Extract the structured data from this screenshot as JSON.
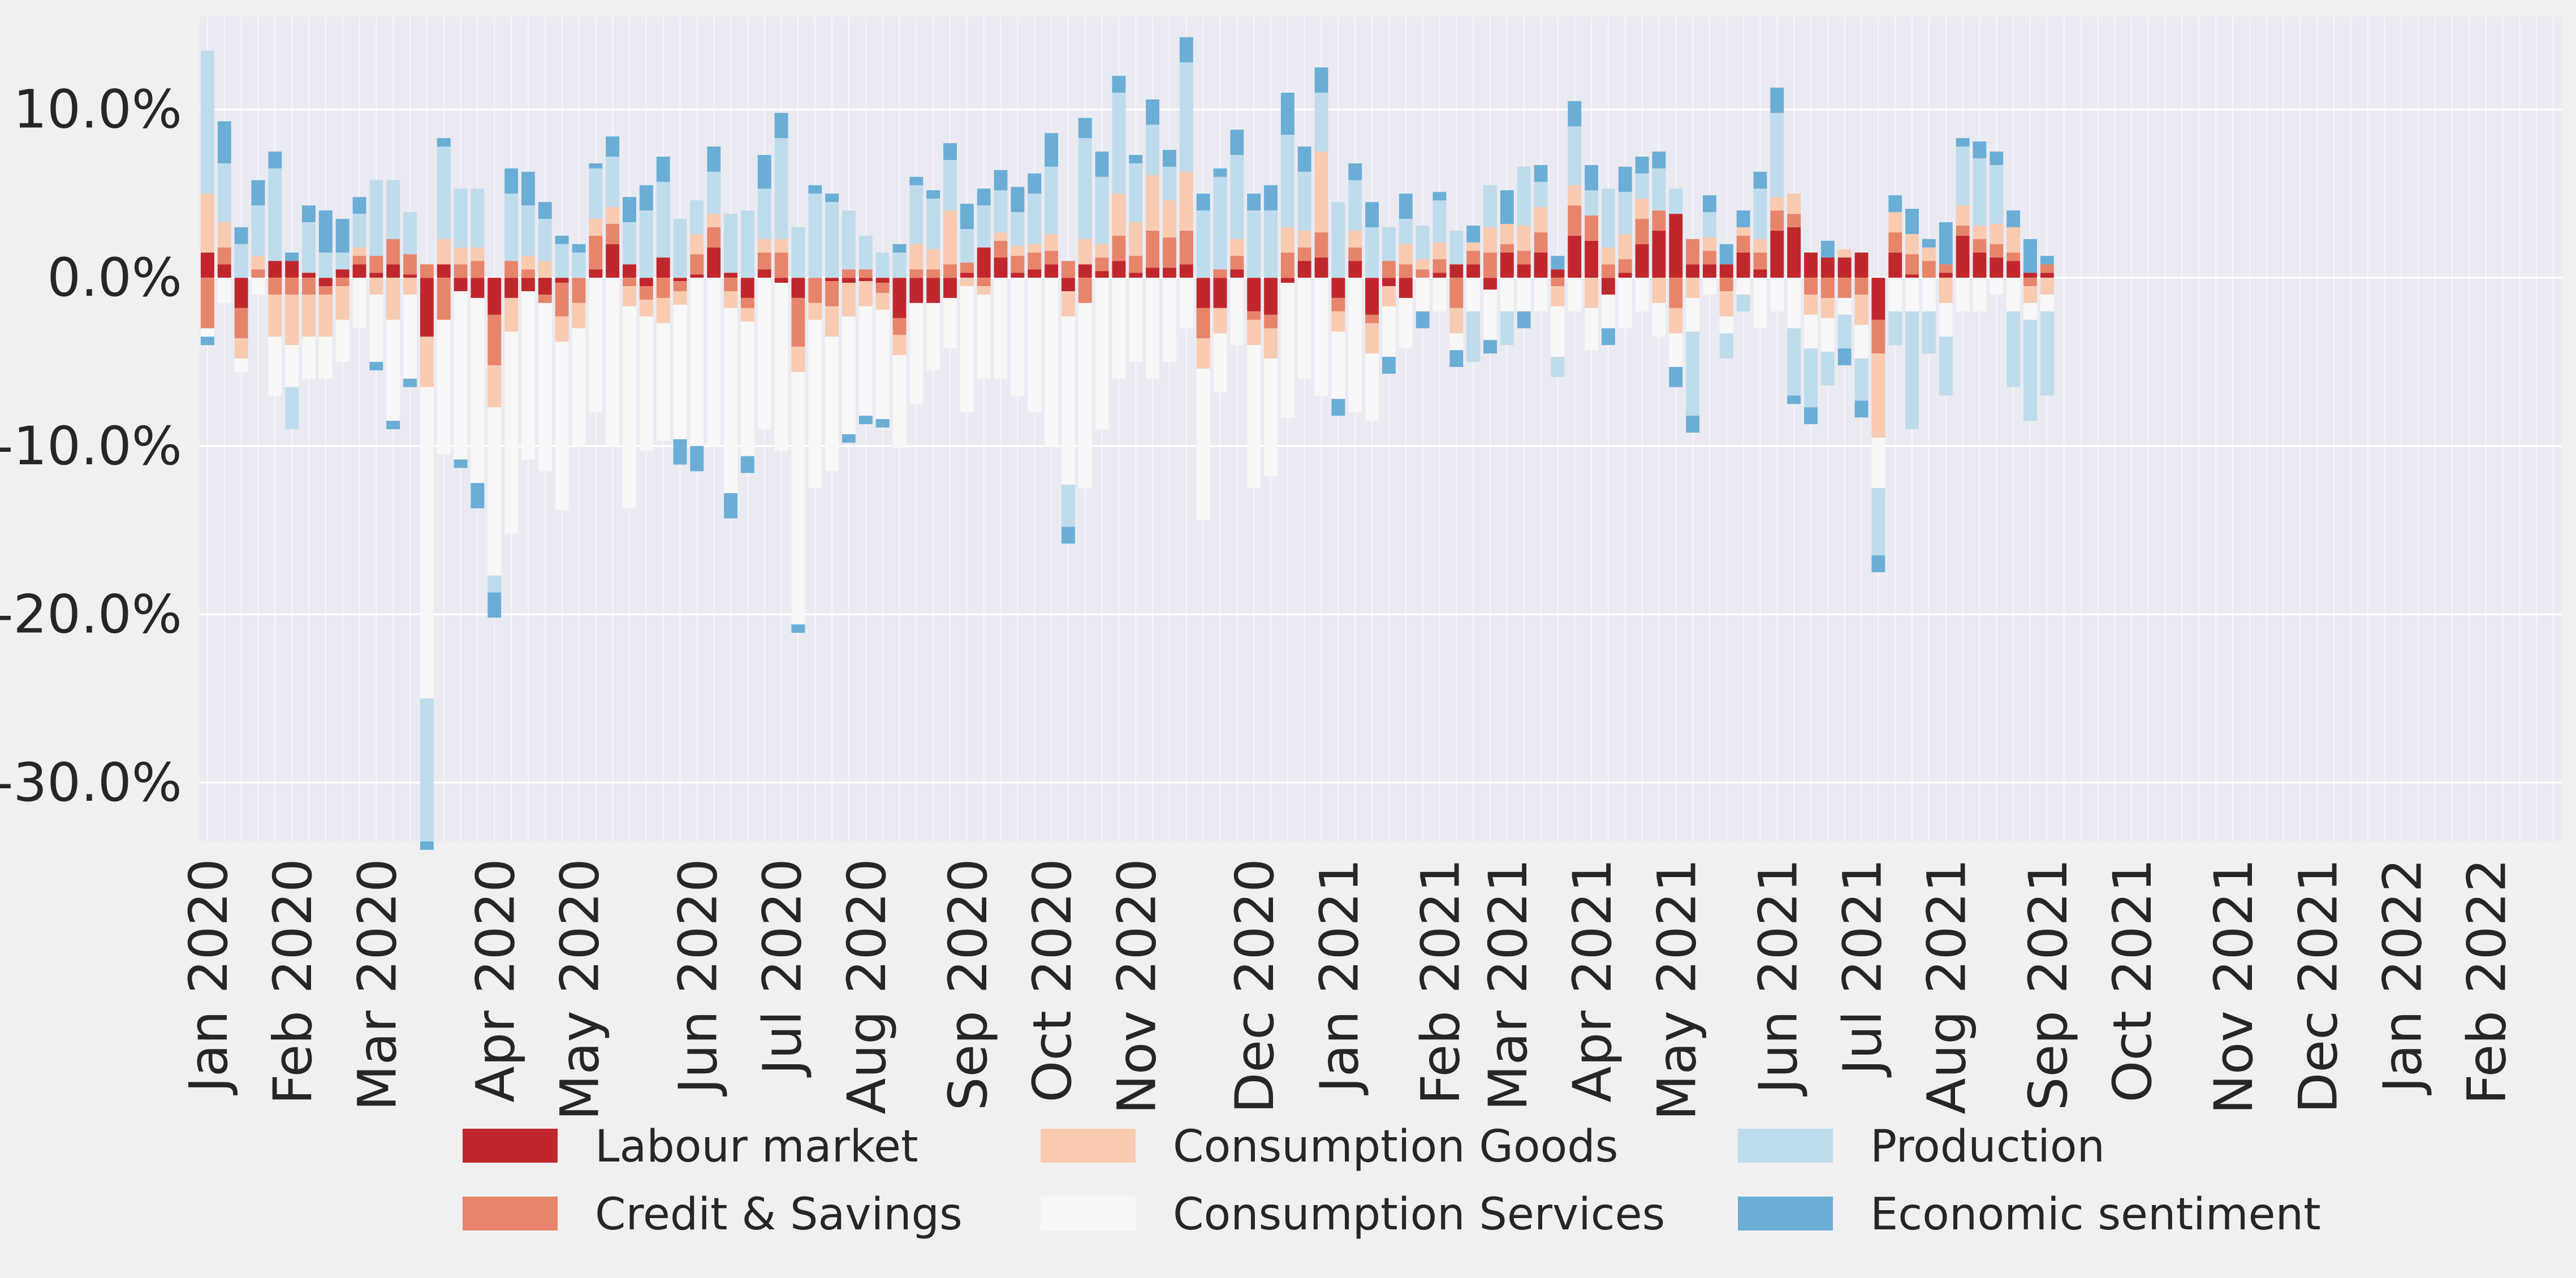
{
  "chart_data": {
    "type": "bar",
    "stacked": true,
    "title": "",
    "xlabel": "",
    "ylabel": "",
    "ylim": [
      -33.5,
      15.5
    ],
    "y_ticks": [
      10,
      0,
      -10,
      -20,
      -30
    ],
    "y_tick_labels": [
      "10.0%",
      "0.0%",
      "-10.0%",
      "-20.0%",
      "-30.0%"
    ],
    "x_ticks": [
      {
        "label": "Jan 2020",
        "index": 0
      },
      {
        "label": "Feb 2020",
        "index": 5
      },
      {
        "label": "Mar 2020",
        "index": 10
      },
      {
        "label": "Apr 2020",
        "index": 17
      },
      {
        "label": "May 2020",
        "index": 22
      },
      {
        "label": "Jun 2020",
        "index": 29
      },
      {
        "label": "Jul 2020",
        "index": 34
      },
      {
        "label": "Aug 2020",
        "index": 39
      },
      {
        "label": "Sep 2020",
        "index": 45
      },
      {
        "label": "Oct 2020",
        "index": 50
      },
      {
        "label": "Nov 2020",
        "index": 55
      },
      {
        "label": "Dec 2020",
        "index": 62
      },
      {
        "label": "Jan 2021",
        "index": 67
      },
      {
        "label": "Feb 2021",
        "index": 73
      },
      {
        "label": "Mar 2021",
        "index": 77
      },
      {
        "label": "Apr 2021",
        "index": 82
      },
      {
        "label": "May 2021",
        "index": 87
      },
      {
        "label": "Jun 2021",
        "index": 93
      },
      {
        "label": "Jul 2021",
        "index": 98
      },
      {
        "label": "Aug 2021",
        "index": 103
      },
      {
        "label": "Sep 2021",
        "index": 109
      },
      {
        "label": "Oct 2021",
        "index": 114
      },
      {
        "label": "Nov 2021",
        "index": 120
      },
      {
        "label": "Dec 2021",
        "index": 125
      },
      {
        "label": "Jan 2022",
        "index": 130
      },
      {
        "label": "Feb 2022",
        "index": 135
      }
    ],
    "n_periods": 140,
    "grid": true,
    "legend_position": "bottom-center",
    "series": [
      {
        "name": "Labour market",
        "color": "#c0272d",
        "values": [
          1.5,
          0.8,
          -1.8,
          0,
          1,
          1,
          0.3,
          -0.5,
          0.5,
          0.8,
          0.3,
          0.8,
          0.2,
          -3.5,
          0.8,
          -0.8,
          -1.2,
          -2.2,
          -1.2,
          -0.8,
          -1,
          -0.3,
          0,
          0.5,
          2,
          0.8,
          -0.5,
          1.2,
          -0.2,
          0.2,
          1.8,
          0.3,
          -1.2,
          0.5,
          -0.3,
          -1.2,
          0,
          -0.2,
          -0.3,
          -0.2,
          -0.3,
          -2.4,
          -1.5,
          -1.5,
          -1.2,
          0.3,
          1.8,
          1.2,
          0.3,
          0.5,
          0.8,
          -0.8,
          0.8,
          0.4,
          1,
          0.3,
          0.6,
          0.6,
          0.8,
          -1.8,
          -1.8,
          0.5,
          -2,
          -2.2,
          -0.3,
          1,
          1.2,
          -1.2,
          1,
          -2.2,
          -0.5,
          -1.2,
          0,
          0.3,
          0.8,
          0.8,
          -0.7,
          1.5,
          0.8,
          1.5,
          0.5,
          2.5,
          2.2,
          -1,
          0.3,
          2,
          2.8,
          3.8,
          0.8,
          0.8,
          0.8,
          1.5,
          0.5,
          2.8,
          3,
          1.5,
          1.2,
          1.2,
          1.5,
          -2.5,
          1.5,
          0.2,
          0,
          0.3,
          2.5,
          1.5,
          1.2,
          1,
          0.3,
          0.3
        ]
      },
      {
        "name": "Credit & Savings",
        "color": "#e7856b",
        "values": [
          -3,
          1,
          -1.8,
          0.5,
          -1,
          -1,
          -1,
          -0.5,
          -0.5,
          0.5,
          1,
          1.5,
          1.2,
          0.8,
          -2.5,
          0.8,
          1,
          -3,
          1,
          0.5,
          -0.5,
          -2,
          -1.5,
          2,
          1.2,
          -0.5,
          -0.8,
          -1.2,
          -0.6,
          1.2,
          1.2,
          -0.8,
          -0.6,
          1,
          1.5,
          -2.9,
          -1.5,
          -1.5,
          0.5,
          0.5,
          -0.6,
          -1,
          0.5,
          0.5,
          0.8,
          0.6,
          -0.5,
          1,
          1,
          1,
          0.8,
          1,
          -1.5,
          0.8,
          1.5,
          1,
          2.2,
          1.8,
          2,
          -1.8,
          0.5,
          0.8,
          -0.5,
          -0.8,
          1.5,
          0.8,
          1.5,
          -0.8,
          0.8,
          -0.5,
          1,
          0.8,
          0.5,
          0.8,
          -1.8,
          0.8,
          1.5,
          0.5,
          0.8,
          1.2,
          -0.5,
          1.8,
          1.5,
          0.8,
          0.8,
          1.5,
          1.2,
          -1.8,
          1.5,
          0.8,
          -0.8,
          1,
          1,
          1.2,
          0.8,
          -1,
          -1.2,
          -1.2,
          -1,
          -2,
          1.2,
          1.2,
          1,
          0.5,
          0.6,
          0.8,
          0.8,
          0.5,
          -0.5,
          0.5
        ]
      },
      {
        "name": "Consumption Goods",
        "color": "#f9cbb1",
        "values": [
          3.5,
          1.5,
          -1.2,
          0.8,
          -2.5,
          -3,
          -2.5,
          -2.5,
          -2,
          0.5,
          -1,
          -2.5,
          -1,
          -3,
          1.5,
          1,
          0.8,
          -2.5,
          -2,
          0.8,
          1,
          -1.5,
          -1.5,
          1,
          1,
          -1.2,
          -1,
          -1.5,
          -0.8,
          1.2,
          0.8,
          -1,
          -0.8,
          0.8,
          0.8,
          -1.5,
          -1,
          -1.8,
          -2,
          -1.5,
          -1,
          -1.2,
          1.5,
          1.2,
          3.2,
          -0.5,
          -0.5,
          0.5,
          0.6,
          0.5,
          1,
          -1.5,
          1.5,
          0.8,
          2.5,
          2,
          3.3,
          2.2,
          3.5,
          -1.8,
          -1.5,
          1,
          -1.5,
          -1.8,
          1.5,
          1,
          4.8,
          -1.2,
          1,
          -1.8,
          -1.2,
          1.2,
          0.6,
          1,
          -1.5,
          0.5,
          1.5,
          1.2,
          1.5,
          1.5,
          -1.2,
          1.2,
          -1.8,
          1,
          1.5,
          1.2,
          -1.5,
          -1.5,
          -1.2,
          0.8,
          -1.5,
          0.5,
          0.8,
          0.8,
          1.2,
          -1.2,
          -1.2,
          0.5,
          -1.8,
          -5,
          1.2,
          1.2,
          0.8,
          -1.5,
          1.2,
          0.8,
          1.2,
          1.5,
          -1,
          -1
        ]
      },
      {
        "name": "Consumption Services",
        "color": "#f7f7f7",
        "values": [
          -0.5,
          -1.5,
          -0.8,
          -1,
          -3.5,
          -2.5,
          -2.5,
          -2.5,
          -2.5,
          -3,
          -4,
          -6,
          -5,
          -18.5,
          -8,
          -10,
          -11,
          -10,
          -12,
          -10,
          -10,
          -10,
          -7,
          -8,
          -10,
          -12,
          -8,
          -7,
          -8,
          -10,
          -10,
          -11,
          -8,
          -9,
          -10,
          -15,
          -10,
          -8,
          -7,
          -6.5,
          -6.5,
          -5.5,
          -6,
          -4,
          -3,
          -7.5,
          -5,
          -6,
          -7,
          -8,
          -10,
          -10,
          -11,
          -9,
          -6,
          -5,
          -6,
          -5,
          -3,
          -9,
          -3.5,
          -4,
          -8.5,
          -7,
          -8,
          -6,
          -7,
          -4,
          -8,
          -4,
          -3,
          -3,
          -2,
          -2,
          -1,
          -2,
          -3,
          -2,
          -2,
          -2,
          -3,
          -2,
          -2.5,
          -2,
          -3,
          -2,
          -2,
          -2,
          -2,
          -1,
          -1,
          -1,
          -3,
          -2,
          -3,
          -2,
          -2,
          -1,
          -2,
          -3,
          -2,
          -2,
          -2,
          -2,
          -2,
          -2,
          -1,
          -2,
          -1,
          -1
        ]
      },
      {
        "name": "Production",
        "color": "#bfdcec",
        "values": [
          8.5,
          3.5,
          2,
          3,
          5.5,
          -2.5,
          3,
          1.5,
          1,
          2,
          4.5,
          3.5,
          2.5,
          -8.5,
          5.5,
          3.5,
          3.5,
          -1,
          4,
          3,
          2.5,
          2,
          1.5,
          3,
          3,
          2.5,
          4,
          4.5,
          3.5,
          2,
          2.5,
          3.5,
          4,
          3,
          6,
          3,
          5,
          4.5,
          3.5,
          2,
          1.5,
          1.5,
          3.5,
          3,
          3,
          2,
          2.5,
          2.5,
          2,
          3,
          4,
          -2.5,
          6,
          4,
          6,
          3.5,
          3,
          2,
          6.5,
          4,
          5.5,
          5,
          4,
          4,
          5.5,
          3.5,
          3.5,
          4.5,
          3,
          3,
          2,
          1.5,
          2,
          2.5,
          2,
          -3,
          2.5,
          -2,
          3.5,
          1.5,
          -1.2,
          3.5,
          1.5,
          3.5,
          2.5,
          1.5,
          2.5,
          1.5,
          -5,
          1.5,
          -1.5,
          -1,
          3,
          5,
          -4,
          -3.5,
          -2,
          -2,
          -2.5,
          -4,
          -2,
          -7,
          -2.5,
          -3.5,
          3.5,
          4,
          3.5,
          -4.5,
          -6,
          -5
        ]
      },
      {
        "name": "Economic sentiment",
        "color": "#6aaed6",
        "values": [
          -0.5,
          2.5,
          1,
          1.5,
          1,
          0.5,
          1,
          2.5,
          2,
          1,
          -0.5,
          -0.5,
          -0.5,
          -0.5,
          0.5,
          -0.5,
          -1.5,
          -1.5,
          1.5,
          2,
          1,
          0.5,
          0.5,
          0.3,
          1.2,
          1.5,
          1.5,
          1.5,
          -1.5,
          -1.5,
          1.5,
          -1.5,
          -1,
          2,
          1.5,
          -0.5,
          0.5,
          0.5,
          -0.5,
          -0.5,
          -0.5,
          0.5,
          0.5,
          0.5,
          1,
          1.5,
          1,
          1.2,
          1.5,
          1.2,
          2,
          -1,
          1.2,
          1.5,
          1,
          0.5,
          1.5,
          1,
          1.5,
          1,
          0.5,
          1.5,
          1,
          1.5,
          2.5,
          1.5,
          1.5,
          -1,
          1,
          1.5,
          -1,
          1.5,
          -1,
          0.5,
          -1,
          1,
          -0.8,
          2,
          -1,
          1,
          0.8,
          1.5,
          1.5,
          -1,
          1.5,
          1,
          1,
          -1.2,
          -1,
          1,
          1.2,
          1,
          1,
          1.5,
          -0.5,
          -1,
          1,
          -1,
          -1,
          -1,
          1,
          1.5,
          0.5,
          2.5,
          0.5,
          1,
          0.8,
          1,
          2,
          0.5
        ]
      }
    ]
  },
  "colors": {
    "page_background": "#f0f0f0",
    "plot_background": "#eaeaf2",
    "grid": "#ffffff",
    "text": "#262626"
  }
}
